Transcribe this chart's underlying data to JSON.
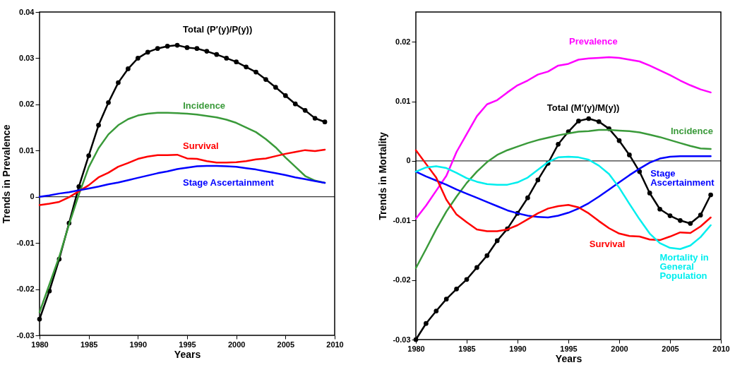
{
  "chart_data": [
    {
      "type": "line",
      "xlabel": "Years",
      "ylabel": "Trends in Prevalence",
      "x": [
        1980,
        1981,
        1982,
        1983,
        1984,
        1985,
        1986,
        1987,
        1988,
        1989,
        1990,
        1991,
        1992,
        1993,
        1994,
        1995,
        1996,
        1997,
        1998,
        1999,
        2000,
        2001,
        2002,
        2003,
        2004,
        2005,
        2006,
        2007,
        2008,
        2009
      ],
      "xlim": [
        1980,
        2010
      ],
      "xticks": [
        1980,
        1985,
        1990,
        1995,
        2000,
        2005,
        2010
      ],
      "ylim": [
        -0.03,
        0.04
      ],
      "yticks": [
        -0.03,
        -0.02,
        -0.01,
        0,
        0.01,
        0.02,
        0.03,
        0.04
      ],
      "grid": false,
      "legend": false,
      "line_style": "solid",
      "ref_lines": [
        {
          "axis": "y",
          "value": 0,
          "color": "#000000"
        }
      ],
      "series": [
        {
          "name": "Total (P′(y)/P(y))",
          "color": "#000000",
          "marker": "circle",
          "values": [
            -0.0265,
            -0.0204,
            -0.0135,
            -0.0057,
            0.0022,
            0.0089,
            0.0155,
            0.0204,
            0.0247,
            0.0277,
            0.03,
            0.0313,
            0.0321,
            0.0326,
            0.0328,
            0.0323,
            0.0321,
            0.0315,
            0.0308,
            0.03,
            0.0292,
            0.0281,
            0.027,
            0.0254,
            0.0237,
            0.0219,
            0.0201,
            0.0187,
            0.017,
            0.0162
          ]
        },
        {
          "name": "Incidence",
          "color": "#3a9a3a",
          "marker": "none",
          "values": [
            -0.025,
            -0.019,
            -0.013,
            -0.006,
            0.0005,
            0.0064,
            0.0105,
            0.0135,
            0.0155,
            0.0168,
            0.0176,
            0.018,
            0.0182,
            0.0182,
            0.0181,
            0.018,
            0.0178,
            0.0175,
            0.0172,
            0.0167,
            0.016,
            0.015,
            0.014,
            0.0125,
            0.0107,
            0.0085,
            0.0065,
            0.0045,
            0.0035,
            0.003
          ]
        },
        {
          "name": "Survival",
          "color": "#ff0000",
          "marker": "none",
          "values": [
            -0.0018,
            -0.0015,
            -0.0011,
            -0.0001,
            0.0012,
            0.0025,
            0.0042,
            0.0052,
            0.0065,
            0.0073,
            0.0082,
            0.0087,
            0.009,
            0.009,
            0.0091,
            0.0083,
            0.0082,
            0.0077,
            0.0074,
            0.0074,
            0.0075,
            0.0077,
            0.0081,
            0.0083,
            0.0088,
            0.0093,
            0.0097,
            0.0101,
            0.0099,
            0.0102
          ]
        },
        {
          "name": "Stage Ascertainment",
          "color": "#0000ff",
          "marker": "none",
          "values": [
            0,
            0.0003,
            0.0007,
            0.001,
            0.0014,
            0.0018,
            0.0022,
            0.0027,
            0.0031,
            0.0036,
            0.0041,
            0.0046,
            0.0051,
            0.0055,
            0.006,
            0.0063,
            0.0066,
            0.0067,
            0.0067,
            0.0066,
            0.0065,
            0.0062,
            0.0059,
            0.0055,
            0.0051,
            0.0047,
            0.0042,
            0.0038,
            0.0034,
            0.003
          ]
        }
      ]
    },
    {
      "type": "line",
      "xlabel": "Years",
      "ylabel": "Trends in Mortality",
      "x": [
        1980,
        1981,
        1982,
        1983,
        1984,
        1985,
        1986,
        1987,
        1988,
        1989,
        1990,
        1991,
        1992,
        1993,
        1994,
        1995,
        1996,
        1997,
        1998,
        1999,
        2000,
        2001,
        2002,
        2003,
        2004,
        2005,
        2006,
        2007,
        2008,
        2009
      ],
      "xlim": [
        1980,
        2010
      ],
      "xticks": [
        1980,
        1985,
        1990,
        1995,
        2000,
        2005,
        2010
      ],
      "ylim": [
        -0.03,
        0.025
      ],
      "yticks": [
        -0.03,
        -0.02,
        -0.01,
        0,
        0.01,
        0.02
      ],
      "grid": false,
      "legend": false,
      "line_style": "solid",
      "ref_lines": [
        {
          "axis": "y",
          "value": 0,
          "color": "#000000"
        }
      ],
      "series": [
        {
          "name": "Prevalence",
          "color": "#ff00ff",
          "marker": "none",
          "values": [
            -0.0097,
            -0.0075,
            -0.005,
            -0.0025,
            0.0015,
            0.0045,
            0.0075,
            0.0095,
            0.0102,
            0.0115,
            0.0127,
            0.0135,
            0.0145,
            0.015,
            0.016,
            0.0163,
            0.017,
            0.0172,
            0.0173,
            0.0174,
            0.0173,
            0.017,
            0.0167,
            0.016,
            0.0152,
            0.0144,
            0.0135,
            0.0127,
            0.012,
            0.0115
          ]
        },
        {
          "name": "Total (M′(y)/M(y))",
          "color": "#000000",
          "marker": "circle",
          "values": [
            -0.03,
            -0.0273,
            -0.0252,
            -0.0232,
            -0.0215,
            -0.0199,
            -0.0179,
            -0.0159,
            -0.0134,
            -0.0114,
            -0.0088,
            -0.0062,
            -0.0032,
            -0.0004,
            0.0028,
            0.0049,
            0.0067,
            0.0071,
            0.0066,
            0.0054,
            0.0034,
            0.001,
            -0.0018,
            -0.0054,
            -0.0081,
            -0.0092,
            -0.01,
            -0.0105,
            -0.0091,
            -0.0057
          ]
        },
        {
          "name": "Incidence",
          "color": "#3a9a3a",
          "marker": "none",
          "values": [
            -0.018,
            -0.0148,
            -0.0115,
            -0.0085,
            -0.006,
            -0.0037,
            -0.0018,
            -0.0002,
            0.001,
            0.0018,
            0.0024,
            0.003,
            0.0035,
            0.0039,
            0.0043,
            0.0046,
            0.0049,
            0.005,
            0.0052,
            0.0052,
            0.0051,
            0.005,
            0.0048,
            0.0044,
            0.004,
            0.0035,
            0.003,
            0.0025,
            0.0021,
            0.002
          ]
        },
        {
          "name": "Stage Ascertainment",
          "color": "#0000ff",
          "marker": "none",
          "values": [
            -0.0018,
            -0.0026,
            -0.0033,
            -0.004,
            -0.0048,
            -0.0055,
            -0.0062,
            -0.0069,
            -0.0076,
            -0.0083,
            -0.0088,
            -0.0092,
            -0.0094,
            -0.0095,
            -0.0092,
            -0.0087,
            -0.008,
            -0.0071,
            -0.006,
            -0.0048,
            -0.0036,
            -0.0024,
            -0.0013,
            -0.0003,
            0.0004,
            0.0007,
            0.0008,
            0.0008,
            0.0008,
            0.0008
          ]
        },
        {
          "name": "Survival",
          "color": "#ff0000",
          "marker": "none",
          "values": [
            0.0018,
            -0.0005,
            -0.0028,
            -0.0065,
            -0.009,
            -0.0103,
            -0.0115,
            -0.0118,
            -0.0118,
            -0.0115,
            -0.0108,
            -0.0098,
            -0.0088,
            -0.008,
            -0.0076,
            -0.0074,
            -0.0078,
            -0.0088,
            -0.0101,
            -0.0113,
            -0.0122,
            -0.0126,
            -0.0127,
            -0.0132,
            -0.0133,
            -0.0127,
            -0.012,
            -0.0121,
            -0.011,
            -0.0095
          ]
        },
        {
          "name": "Mortality in General Population",
          "color": "#00eeee",
          "marker": "none",
          "values": [
            -0.0018,
            -0.0011,
            -0.0009,
            -0.0012,
            -0.002,
            -0.0029,
            -0.0035,
            -0.0039,
            -0.004,
            -0.004,
            -0.0036,
            -0.0028,
            -0.0015,
            -0.0002,
            0.0006,
            0.0007,
            0.0006,
            0.0002,
            -0.0008,
            -0.0022,
            -0.0045,
            -0.0072,
            -0.0098,
            -0.0122,
            -0.0138,
            -0.0146,
            -0.0148,
            -0.0142,
            -0.0128,
            -0.0108
          ]
        }
      ]
    }
  ]
}
